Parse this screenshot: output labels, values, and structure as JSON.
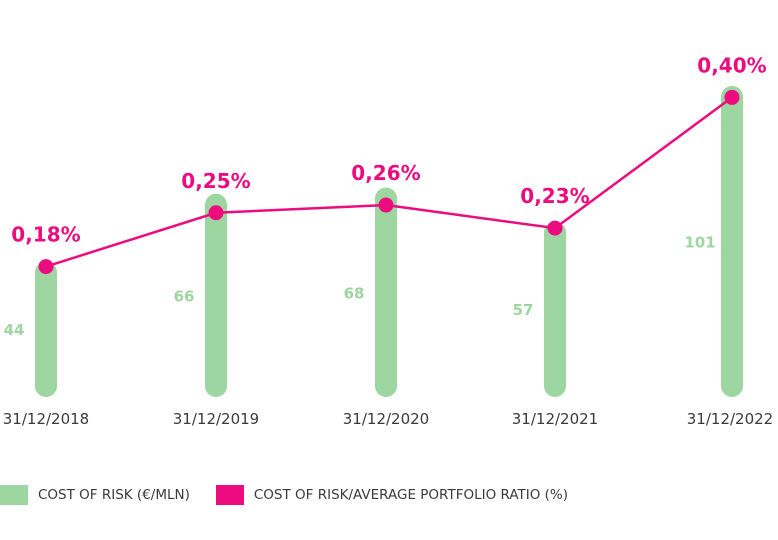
{
  "chart_data": {
    "type": "bar",
    "categories": [
      "31/12/2018",
      "31/12/2019",
      "31/12/2020",
      "31/12/2021",
      "31/12/2022"
    ],
    "series": [
      {
        "name": "COST OF RISK (€/MLN)",
        "type": "bar",
        "values": [
          44,
          66,
          68,
          57,
          101
        ],
        "labels": [
          "44",
          "66",
          "68",
          "57",
          "101"
        ],
        "color": "#9dd6a0"
      },
      {
        "name": "COST OF RISK/AVERAGE PORTFOLIO RATIO (%)",
        "type": "line",
        "values": [
          0.18,
          0.25,
          0.26,
          0.23,
          0.4
        ],
        "labels": [
          "0,18%",
          "0,25%",
          "0,26%",
          "0,23%",
          "0,40%"
        ],
        "color": "#ec0c7f"
      }
    ],
    "legend_position": "bottom-left",
    "grid": false
  },
  "colors": {
    "bar": "#9dd6a0",
    "line": "#ec0c7f",
    "bar_label": "#9dd6a0",
    "line_label": "#ec0c7f",
    "tick": "#3a3a3a"
  }
}
